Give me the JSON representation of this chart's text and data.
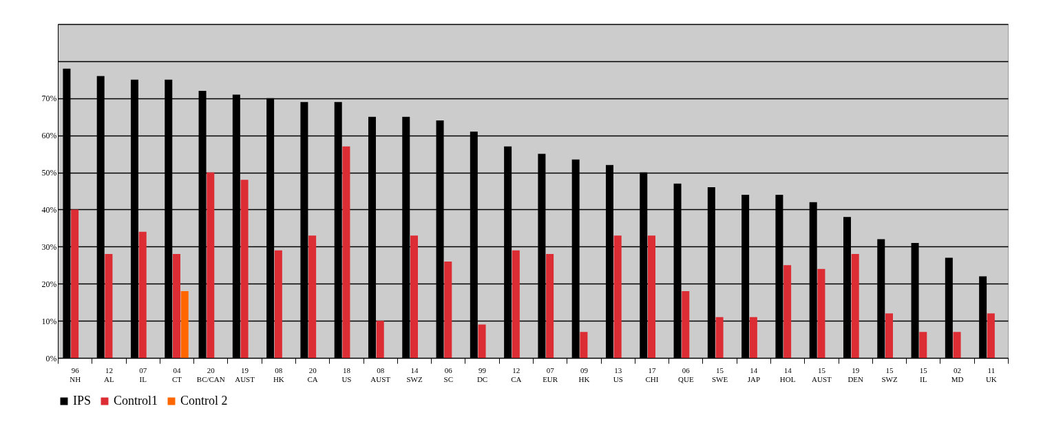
{
  "chart_data": {
    "type": "bar",
    "categories": [
      "96\nNH",
      "12\nAL",
      "07\nIL",
      "04\nCT",
      "20\nBC/CAN",
      "19\nAUST",
      "08\nHK",
      "20\nCA",
      "18\nUS",
      "08\nAUST",
      "14\nSWZ",
      "06\nSC",
      "99\nDC",
      "12\nCA",
      "07\nEUR",
      "09\nHK",
      "13\nUS",
      "17\nCHI",
      "06\nQUE",
      "15\nSWE",
      "14\nJAP",
      "14\nHOL",
      "15\nAUST",
      "19\nDEN",
      "15\nSWZ",
      "15\nIL",
      "02\nMD",
      "11\nUK"
    ],
    "series": [
      {
        "name": "IPS",
        "color": "#000000",
        "values": [
          78,
          76,
          75,
          75,
          72,
          71,
          70,
          69,
          69,
          65,
          65,
          64,
          61,
          57,
          55,
          53.5,
          52,
          50,
          47,
          46,
          44,
          44,
          42,
          38,
          32,
          31,
          27,
          22
        ]
      },
      {
        "name": "Control1",
        "color": "#dc2c34",
        "values": [
          40,
          28,
          34,
          28,
          50,
          48,
          29,
          33,
          57,
          10,
          33,
          26,
          9,
          29,
          28,
          7,
          33,
          33,
          18,
          11,
          11,
          25,
          24,
          28,
          12,
          7,
          7,
          12
        ]
      },
      {
        "name": "Control 2",
        "color": "#ff6600",
        "values": [
          null,
          null,
          null,
          18,
          null,
          null,
          null,
          null,
          null,
          null,
          null,
          null,
          null,
          null,
          null,
          null,
          null,
          null,
          null,
          null,
          null,
          null,
          null,
          null,
          null,
          null,
          null,
          null
        ]
      }
    ],
    "ylim": [
      0,
      90
    ],
    "yticks": [
      {
        "value": 0,
        "label": "0%"
      },
      {
        "value": 10,
        "label": "10%"
      },
      {
        "value": 20,
        "label": "20%"
      },
      {
        "value": 30,
        "label": "30%"
      },
      {
        "value": 40,
        "label": "40%"
      },
      {
        "value": 50,
        "label": "50%"
      },
      {
        "value": 60,
        "label": "60%"
      },
      {
        "value": 70,
        "label": "70%"
      },
      {
        "value": 80,
        "label": null
      },
      {
        "value": 90,
        "label": null
      }
    ],
    "grid": "y",
    "legend": "bottom"
  }
}
